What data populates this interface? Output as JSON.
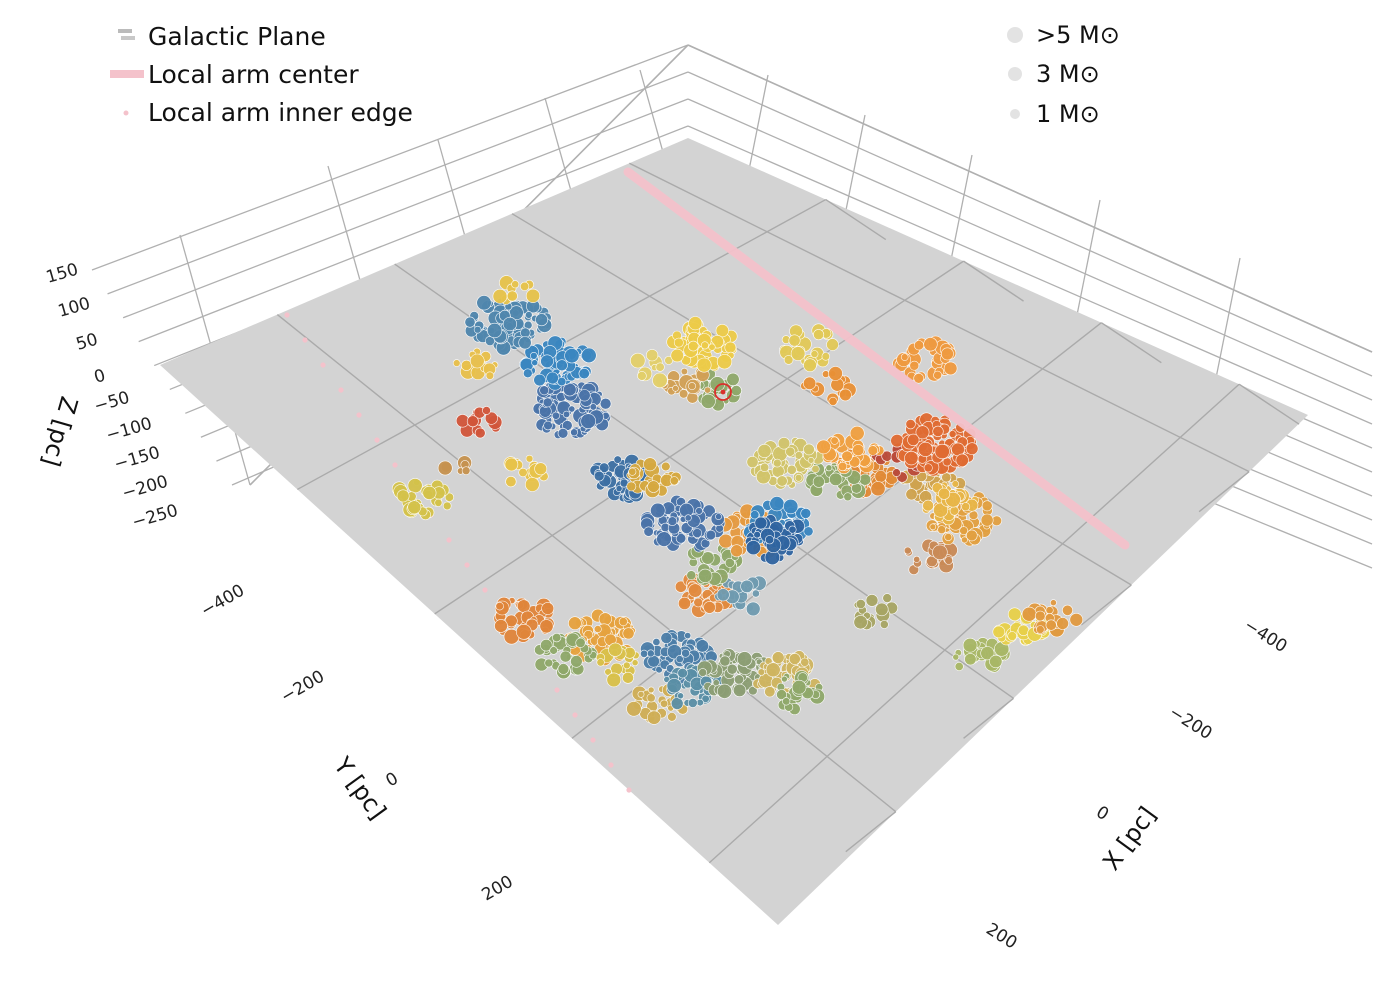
{
  "chart_data": {
    "type": "scatter",
    "projection": "3d",
    "axes": {
      "x": {
        "label": "X [pc]",
        "ticks": [
          "−400",
          "−200",
          "0",
          "200"
        ]
      },
      "y": {
        "label": "Y [pc]",
        "ticks": [
          "−400",
          "−200",
          "0",
          "200"
        ]
      },
      "z": {
        "label": "Z [pc]",
        "ticks": [
          "150",
          "100",
          "50",
          "0",
          "−50",
          "−100",
          "−150",
          "−200",
          "−250"
        ]
      }
    },
    "legend": {
      "position": "top-left",
      "items": [
        {
          "label": "Galactic Plane",
          "color": "#c8c8c8"
        },
        {
          "label": "Local arm center",
          "color": "#f4c2cb"
        },
        {
          "label": "Local arm inner edge",
          "color": "#f4c2cb"
        }
      ]
    },
    "size_legend": {
      "position": "top-right",
      "items": [
        {
          "label": ">5 M⊙",
          "mass": 5
        },
        {
          "label": "3 M⊙",
          "mass": 3
        },
        {
          "label": "1 M⊙",
          "mass": 1
        }
      ]
    },
    "sun_marker": "⊙",
    "plane_color": "#d3d3d3",
    "grid": true,
    "clusters": [
      {
        "color": "#d4c24a",
        "n": 30,
        "x": -480,
        "y": -320,
        "z": 0
      },
      {
        "color": "#c6924f",
        "n": 6,
        "x": -420,
        "y": -330,
        "z": 0
      },
      {
        "color": "#e0853a",
        "n": 40,
        "x": -520,
        "y": -140,
        "z": 0
      },
      {
        "color": "#e6a23e",
        "n": 60,
        "x": -470,
        "y": -70,
        "z": 0
      },
      {
        "color": "#8fa86a",
        "n": 35,
        "x": -520,
        "y": -80,
        "z": 0
      },
      {
        "color": "#d9c14a",
        "n": 20,
        "x": -480,
        "y": -30,
        "z": 0
      },
      {
        "color": "#cfae55",
        "n": 25,
        "x": -490,
        "y": 30,
        "z": 0
      },
      {
        "color": "#4c7ea8",
        "n": 60,
        "x": -420,
        "y": 0,
        "z": 0
      },
      {
        "color": "#5a8fa6",
        "n": 40,
        "x": -440,
        "y": 40,
        "z": 0
      },
      {
        "color": "#8c9e74",
        "n": 60,
        "x": -390,
        "y": 60,
        "z": 0
      },
      {
        "color": "#cfb560",
        "n": 50,
        "x": -350,
        "y": 100,
        "z": 0
      },
      {
        "color": "#8fa86a",
        "n": 25,
        "x": -360,
        "y": 120,
        "z": 0
      },
      {
        "color": "#e28a3e",
        "n": 40,
        "x": -330,
        "y": -40,
        "z": 0
      },
      {
        "color": "#6f9bb0",
        "n": 20,
        "x": -300,
        "y": -10,
        "z": 0
      },
      {
        "color": "#8fa86a",
        "n": 30,
        "x": -290,
        "y": -60,
        "z": 0
      },
      {
        "color": "#e59a40",
        "n": 60,
        "x": -220,
        "y": -60,
        "z": 0
      },
      {
        "color": "#4a73a8",
        "n": 80,
        "x": -270,
        "y": -120,
        "z": 0
      },
      {
        "color": "#3c6fa3",
        "n": 40,
        "x": -270,
        "y": -210,
        "z": 0
      },
      {
        "color": "#d6a83f",
        "n": 30,
        "x": -240,
        "y": -190,
        "z": 0
      },
      {
        "color": "#4a73a8",
        "n": 90,
        "x": -230,
        "y": -320,
        "z": 0
      },
      {
        "color": "#3a86c0",
        "n": 60,
        "x": -180,
        "y": -380,
        "z": 0
      },
      {
        "color": "#4f86ad",
        "n": 90,
        "x": -170,
        "y": -460,
        "z": 0
      },
      {
        "color": "#e7c34a",
        "n": 10,
        "x": -120,
        "y": -490,
        "z": 0
      },
      {
        "color": "#d1553a",
        "n": 12,
        "x": -330,
        "y": -360,
        "z": 0
      },
      {
        "color": "#e9c04a",
        "n": 14,
        "x": -260,
        "y": -430,
        "z": 0
      },
      {
        "color": "#e8c34a",
        "n": 14,
        "x": -350,
        "y": -280,
        "z": 0
      },
      {
        "color": "#8fa86a",
        "n": 25,
        "x": -70,
        "y": -240,
        "z": 0
      },
      {
        "color": "#d1a055",
        "n": 20,
        "x": -90,
        "y": -270,
        "z": 0
      },
      {
        "color": "#e3cf6a",
        "n": 10,
        "x": -100,
        "y": -310,
        "z": 0
      },
      {
        "color": "#3a86c0",
        "n": 50,
        "x": -190,
        "y": -50,
        "z": 0
      },
      {
        "color": "#2f64a0",
        "n": 40,
        "x": -210,
        "y": -40,
        "z": 0
      },
      {
        "color": "#a7a564",
        "n": 15,
        "x": -210,
        "y": 110,
        "z": 0
      },
      {
        "color": "#c98a56",
        "n": 20,
        "x": -110,
        "y": 100,
        "z": 0
      },
      {
        "color": "#e2a040",
        "n": 60,
        "x": -40,
        "y": 90,
        "z": 0
      },
      {
        "color": "#cfa34f",
        "n": 40,
        "x": -20,
        "y": 30,
        "z": 0
      },
      {
        "color": "#e8b648",
        "n": 30,
        "x": -30,
        "y": 60,
        "z": 0
      },
      {
        "color": "#e18a36",
        "n": 50,
        "x": -60,
        "y": -40,
        "z": 0
      },
      {
        "color": "#8fa86a",
        "n": 30,
        "x": -90,
        "y": -50,
        "z": 0
      },
      {
        "color": "#d1c46a",
        "n": 60,
        "x": -110,
        "y": -110,
        "z": 0
      },
      {
        "color": "#a8b766",
        "n": 25,
        "x": -180,
        "y": 230,
        "z": 0
      },
      {
        "color": "#e8d04a",
        "n": 30,
        "x": -120,
        "y": 250,
        "z": 0
      },
      {
        "color": "#e19a40",
        "n": 25,
        "x": -90,
        "y": 260,
        "z": 0
      },
      {
        "color": "#ba4b3a",
        "n": 18,
        "x": -20,
        "y": -20,
        "z": 0
      },
      {
        "color": "#f0a040",
        "n": 40,
        "x": -40,
        "y": -70,
        "z": 0
      },
      {
        "color": "#e06b32",
        "n": 90,
        "x": 30,
        "y": -10,
        "z": 0
      },
      {
        "color": "#e99035",
        "n": 15,
        "x": 20,
        "y": -160,
        "z": 0
      },
      {
        "color": "#ef9a40",
        "n": 35,
        "x": 130,
        "y": -110,
        "z": 0
      },
      {
        "color": "#e2c957",
        "n": 30,
        "x": 60,
        "y": -220,
        "z": 0
      },
      {
        "color": "#edcb48",
        "n": 60,
        "x": -20,
        "y": -300,
        "z": 0
      }
    ]
  }
}
